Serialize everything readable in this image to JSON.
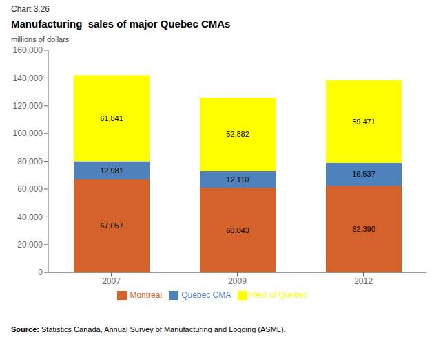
{
  "chart_data": {
    "type": "bar",
    "stacked": true,
    "data_labels": true,
    "grid": false,
    "legend": "bottom",
    "annotations": [
      "Chart 3.26",
      "Source: Statistics Canada, Annual Survey of Manufacturing and Logging (ASML)."
    ],
    "title": "Manufacturing  sales of major Quebec CMAs",
    "ylabel": "millions of dollars",
    "categories": [
      "2007",
      "2009",
      "2012"
    ],
    "series": [
      {
        "name": "Montréal",
        "color": "#D4622A",
        "values": [
          67057,
          60843,
          62390
        ],
        "value_labels": [
          "67,057",
          "60,843",
          "62,390"
        ]
      },
      {
        "name": "Québec CMA",
        "color": "#4F81BD",
        "values": [
          12981,
          12110,
          16537
        ],
        "value_labels": [
          "12,981",
          "12,110",
          "16,537"
        ]
      },
      {
        "name": "Rest of Quebec",
        "color": "#FFFF00",
        "values": [
          61841,
          52882,
          59471
        ],
        "value_labels": [
          "61,841",
          "52,882",
          "59,471"
        ]
      }
    ],
    "ylim": [
      0,
      160000
    ],
    "yticks": [
      0,
      {
        "value": 20000,
        "label": "20,000"
      },
      {
        "value": 40000,
        "label": "40,000"
      },
      {
        "value": 60000,
        "label": "60,000"
      },
      {
        "value": 80000,
        "label": "80,000"
      },
      {
        "value": 100000,
        "label": "100,000"
      },
      {
        "value": 120000,
        "label": "120,000"
      },
      {
        "value": 140000,
        "label": "140,000"
      },
      {
        "value": 160000,
        "label": "160,000"
      }
    ]
  }
}
